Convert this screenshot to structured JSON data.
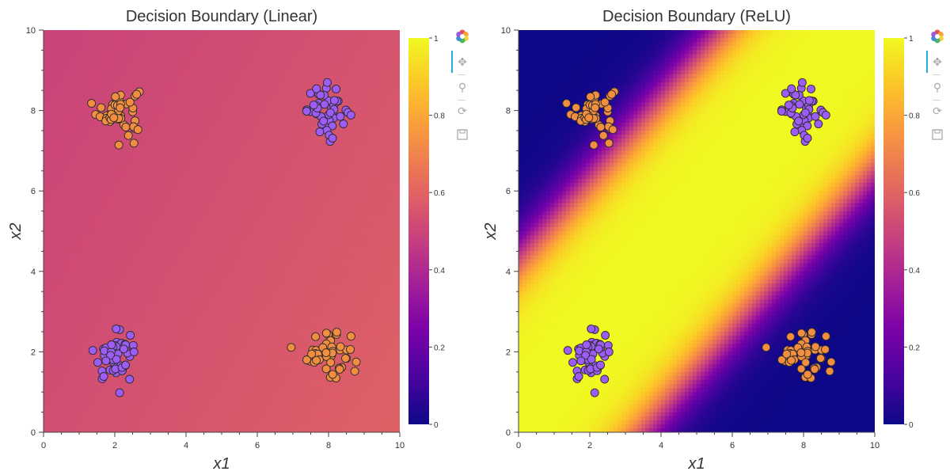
{
  "colors": {
    "class_orange": "#F28E3F",
    "class_purple": "#9D5CF5",
    "marker_edge": "#2b2b2b",
    "text": "#333333",
    "axis": "#444444",
    "tool_accent": "#26aae1"
  },
  "toolbar": {
    "icons": [
      "bokeh-logo-icon",
      "pan-icon",
      "box-zoom-icon",
      "reset-icon",
      "save-icon"
    ]
  },
  "chart_data": [
    {
      "type": "heatmap",
      "title": "Decision Boundary (Linear)",
      "xlabel": "x1",
      "ylabel": "x2",
      "xlim": [
        0,
        10
      ],
      "ylim": [
        0,
        10
      ],
      "x_ticks": [
        "0",
        "2",
        "4",
        "6",
        "8",
        "10"
      ],
      "y_ticks": [
        "0",
        "2",
        "4",
        "6",
        "8",
        "10"
      ],
      "colormap": "plasma",
      "colorbar": {
        "range": [
          0,
          1
        ],
        "ticks": [
          "0",
          "0.2",
          "0.4",
          "0.6",
          "0.8",
          "1"
        ]
      },
      "grid": false,
      "surface": {
        "model": "linear",
        "value": 0.54,
        "note": "nearly uniform predicted probability"
      },
      "series": [
        {
          "class": 1,
          "color": "#F28E3F",
          "clusters": [
            {
              "center": [
                2.1,
                8.0
              ],
              "spread": 0.3
            },
            {
              "center": [
                8.0,
                2.0
              ],
              "spread": 0.3
            }
          ]
        },
        {
          "class": 0,
          "color": "#9D5CF5",
          "clusters": [
            {
              "center": [
                2.0,
                1.9
              ],
              "spread": 0.3
            },
            {
              "center": [
                8.0,
                8.0
              ],
              "spread": 0.3
            }
          ]
        }
      ],
      "points_per_cluster": 50
    },
    {
      "type": "heatmap",
      "title": "Decision Boundary (ReLU)",
      "xlabel": "x1",
      "ylabel": "x2",
      "xlim": [
        0,
        10
      ],
      "ylim": [
        0,
        10
      ],
      "x_ticks": [
        "0",
        "2",
        "4",
        "6",
        "8",
        "10"
      ],
      "y_ticks": [
        "0",
        "2",
        "4",
        "6",
        "8",
        "10"
      ],
      "colormap": "plasma",
      "colorbar": {
        "range": [
          0,
          1
        ],
        "ticks": [
          "0",
          "0.2",
          "0.4",
          "0.6",
          "0.8",
          "1"
        ]
      },
      "grid": false,
      "surface": {
        "model": "relu",
        "band": "diagonal high-probability band from lower-left to upper-right",
        "upper_boundary_intercept": 4.3,
        "lower_boundary_intercept": -3.5,
        "slope": 1.0
      },
      "series": [
        {
          "class": 1,
          "color": "#F28E3F",
          "clusters": [
            {
              "center": [
                2.1,
                8.0
              ],
              "spread": 0.3
            },
            {
              "center": [
                8.0,
                2.0
              ],
              "spread": 0.3
            }
          ]
        },
        {
          "class": 0,
          "color": "#9D5CF5",
          "clusters": [
            {
              "center": [
                2.0,
                1.9
              ],
              "spread": 0.3
            },
            {
              "center": [
                8.0,
                8.0
              ],
              "spread": 0.3
            }
          ]
        }
      ],
      "points_per_cluster": 50
    }
  ]
}
